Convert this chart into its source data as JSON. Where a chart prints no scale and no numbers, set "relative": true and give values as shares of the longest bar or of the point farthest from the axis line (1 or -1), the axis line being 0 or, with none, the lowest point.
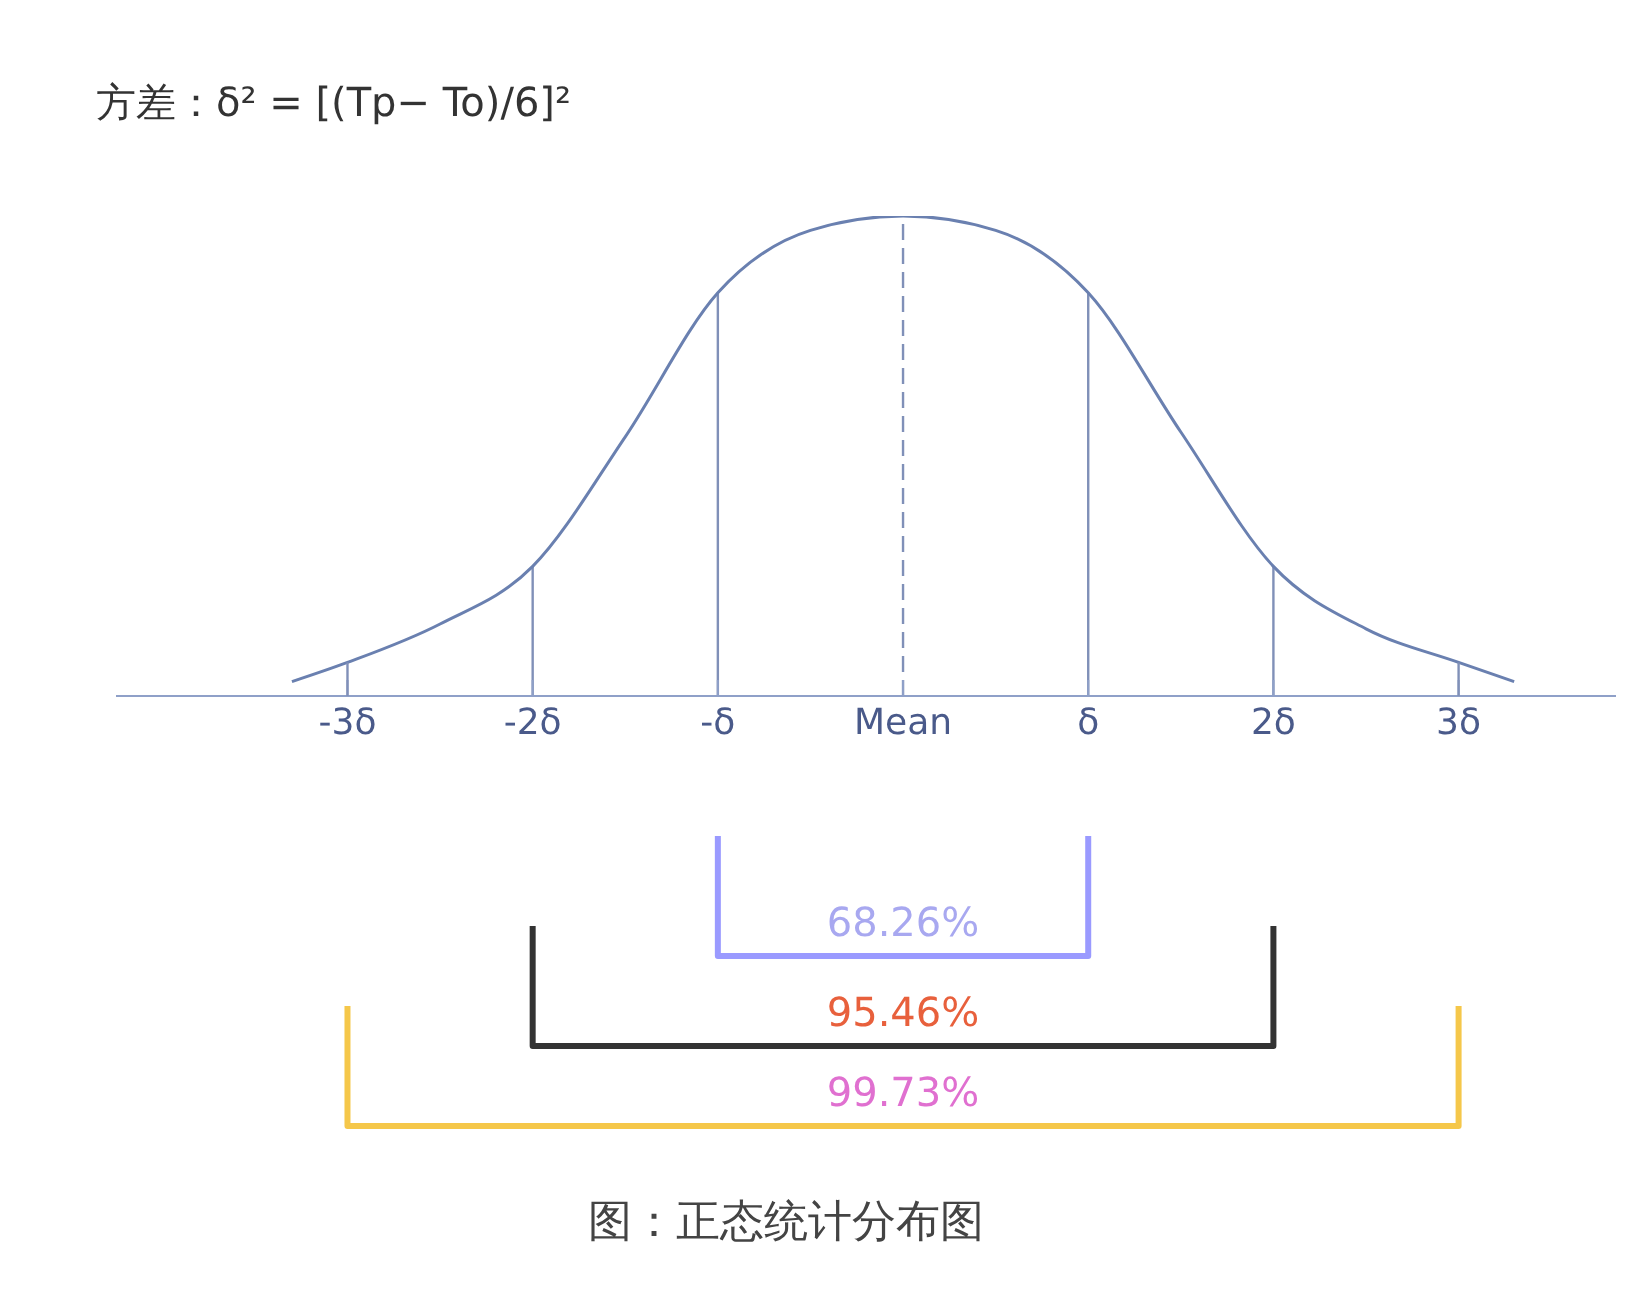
{
  "chart_data": {
    "type": "line",
    "title": "方差：δ² = [(Tp− To)/6]²",
    "relative": true,
    "x": [
      -3.3,
      -3,
      -2.5,
      -2,
      -1.5,
      -1,
      -0.5,
      0,
      0.5,
      1,
      1.5,
      2,
      2.5,
      3,
      3.3
    ],
    "series": [
      {
        "color": "#6a80b0",
        "values": [
          0.03,
          0.07,
          0.15,
          0.27,
          0.54,
          0.84,
          0.97,
          1,
          0.97,
          0.84,
          0.55,
          0.27,
          0.14,
          0.07,
          0.03
        ]
      }
    ],
    "xlim": [
      -4.25,
      3.85
    ],
    "xticks": [
      {
        "value": -3,
        "label": "-3δ"
      },
      {
        "value": -2,
        "label": "-2δ"
      },
      {
        "value": -1,
        "label": "-δ"
      },
      {
        "value": 0,
        "label": "Mean"
      },
      {
        "value": 1,
        "label": "δ"
      },
      {
        "value": 2,
        "label": "2δ"
      },
      {
        "value": 3,
        "label": "3δ"
      }
    ],
    "ref_lines": [
      {
        "axis": "x",
        "value": -2,
        "color": "#8090b8"
      },
      {
        "axis": "x",
        "value": -1,
        "color": "#8090b8"
      },
      {
        "axis": "x",
        "value": 0,
        "color": "#8090b8",
        "line_style": "dashed"
      },
      {
        "axis": "x",
        "value": 1,
        "color": "#8090b8"
      },
      {
        "axis": "x",
        "value": 2,
        "color": "#8090b8"
      }
    ],
    "annotations": [
      "68.26%",
      "95.46%",
      "99.73%",
      "图：正态统计分布图"
    ]
  }
}
